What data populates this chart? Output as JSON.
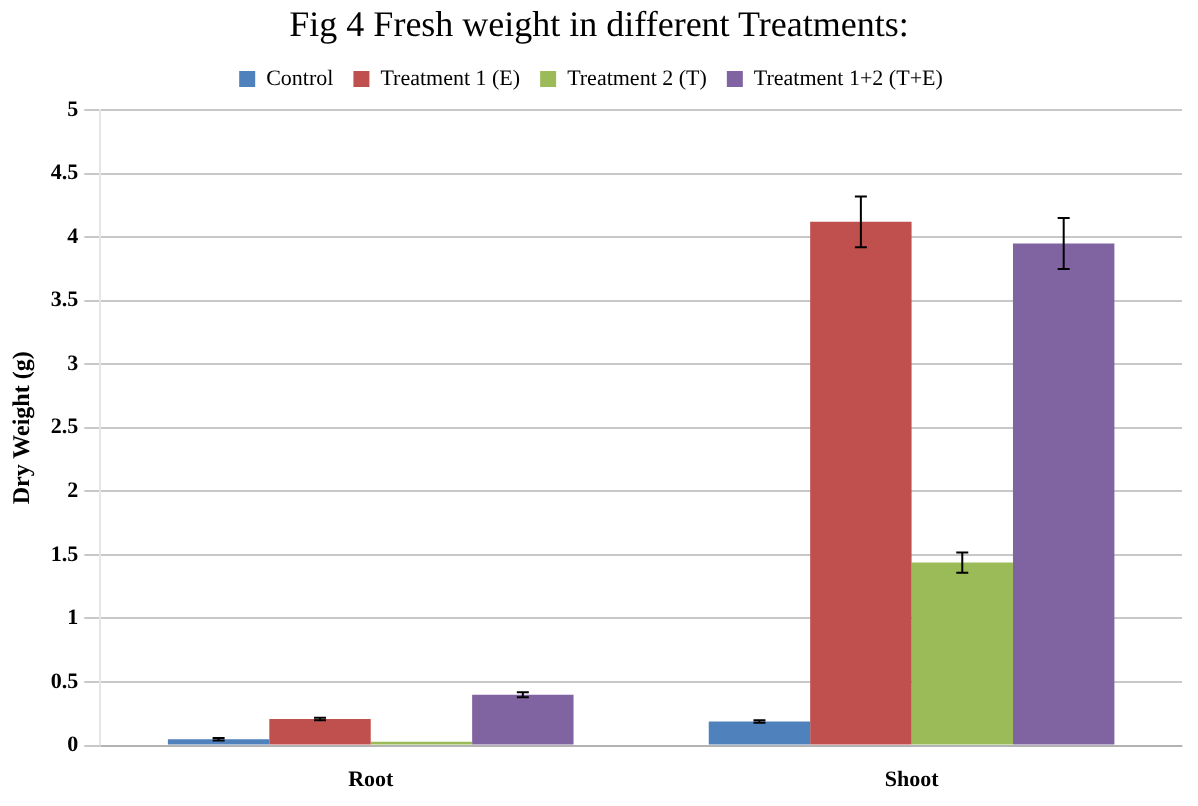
{
  "chart_data": {
    "type": "bar",
    "title": "Fig 4 Fresh weight in different Treatments:",
    "ylabel": "Dry Weight (g)",
    "categories": [
      "Root",
      "Shoot"
    ],
    "series": [
      {
        "name": "Control",
        "color": "#4f81bd",
        "values": [
          0.05,
          0.19
        ],
        "errors": [
          0.01,
          0.01
        ]
      },
      {
        "name": "Treatment 1 (E)",
        "color": "#c0504d",
        "values": [
          0.21,
          4.12
        ],
        "errors": [
          0.01,
          0.2
        ]
      },
      {
        "name": "Treatment 2 (T)",
        "color": "#9bbb59",
        "values": [
          0.03,
          1.44
        ],
        "errors": [
          null,
          0.08
        ]
      },
      {
        "name": "Treatment 1+2 (T+E)",
        "color": "#8064a2",
        "values": [
          0.4,
          3.95
        ],
        "errors": [
          0.02,
          0.2
        ]
      }
    ],
    "ylim": [
      0,
      5
    ],
    "yticks": [
      0,
      0.5,
      1,
      1.5,
      2,
      2.5,
      3,
      3.5,
      4,
      4.5,
      5
    ],
    "grid": "y",
    "legend": "top"
  }
}
